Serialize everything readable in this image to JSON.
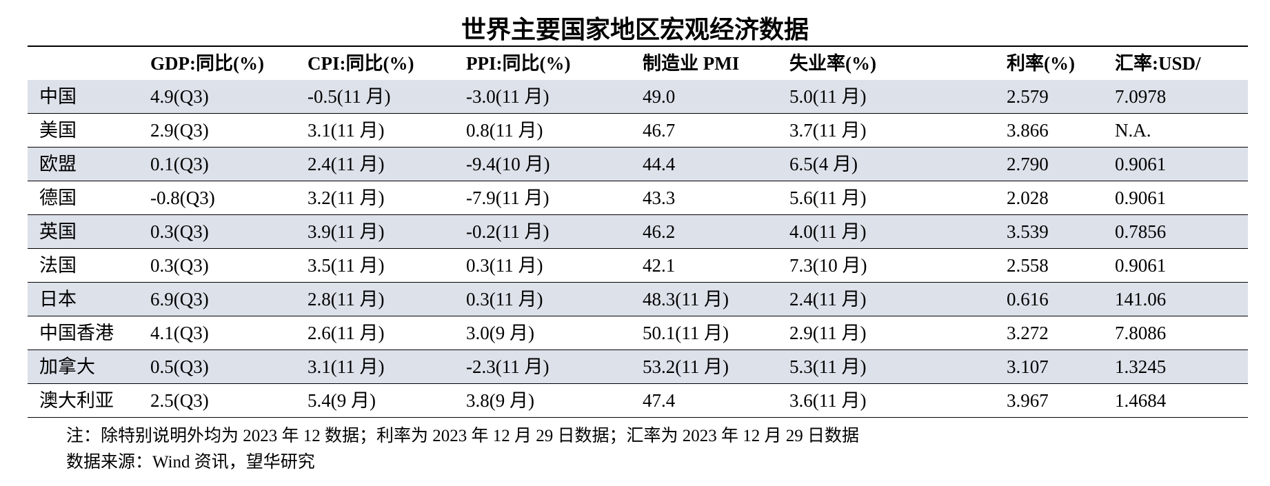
{
  "title": "世界主要国家地区宏观经济数据",
  "table": {
    "header": [
      "",
      "GDP:同比(%)",
      "CPI:同比(%)",
      "PPI:同比(%)",
      "制造业 PMI",
      "失业率(%)",
      "利率(%)",
      "汇率:USD/"
    ],
    "rows": [
      [
        "中国",
        "4.9(Q3)",
        "-0.5(11 月)",
        "-3.0(11 月)",
        "49.0",
        "5.0(11 月)",
        "2.579",
        "7.0978"
      ],
      [
        "美国",
        "2.9(Q3)",
        "3.1(11 月)",
        "0.8(11 月)",
        "46.7",
        "3.7(11 月)",
        "3.866",
        "N.A."
      ],
      [
        "欧盟",
        "0.1(Q3)",
        "2.4(11 月)",
        "-9.4(10 月)",
        "44.4",
        "6.5(4 月)",
        "2.790",
        "0.9061"
      ],
      [
        "德国",
        "-0.8(Q3)",
        "3.2(11 月)",
        "-7.9(11 月)",
        "43.3",
        "5.6(11 月)",
        "2.028",
        "0.9061"
      ],
      [
        "英国",
        "0.3(Q3)",
        "3.9(11 月)",
        "-0.2(11 月)",
        "46.2",
        "4.0(11 月)",
        "3.539",
        "0.7856"
      ],
      [
        "法国",
        "0.3(Q3)",
        "3.5(11 月)",
        "0.3(11 月)",
        "42.1",
        "7.3(10 月)",
        "2.558",
        "0.9061"
      ],
      [
        "日本",
        "6.9(Q3)",
        "2.8(11 月)",
        "0.3(11 月)",
        "48.3(11 月)",
        "2.4(11 月)",
        "0.616",
        "141.06"
      ],
      [
        "中国香港",
        "4.1(Q3)",
        "2.6(11 月)",
        "3.0(9 月)",
        "50.1(11 月)",
        "2.9(11 月)",
        "3.272",
        "7.8086"
      ],
      [
        "加拿大",
        "0.5(Q3)",
        "3.1(11 月)",
        "-2.3(11 月)",
        "53.2(11 月)",
        "5.3(11 月)",
        "3.107",
        "1.3245"
      ],
      [
        "澳大利亚",
        "2.5(Q3)",
        "5.4(9 月)",
        "3.8(9 月)",
        "47.4",
        "3.6(11 月)",
        "3.967",
        "1.4684"
      ]
    ]
  },
  "notes": [
    "注：除特别说明外均为 2023 年 12 数据；利率为 2023 年 12 月 29 日数据；汇率为 2023 年 12 月 29 日数据",
    "数据来源：Wind 资讯，望华研究"
  ]
}
